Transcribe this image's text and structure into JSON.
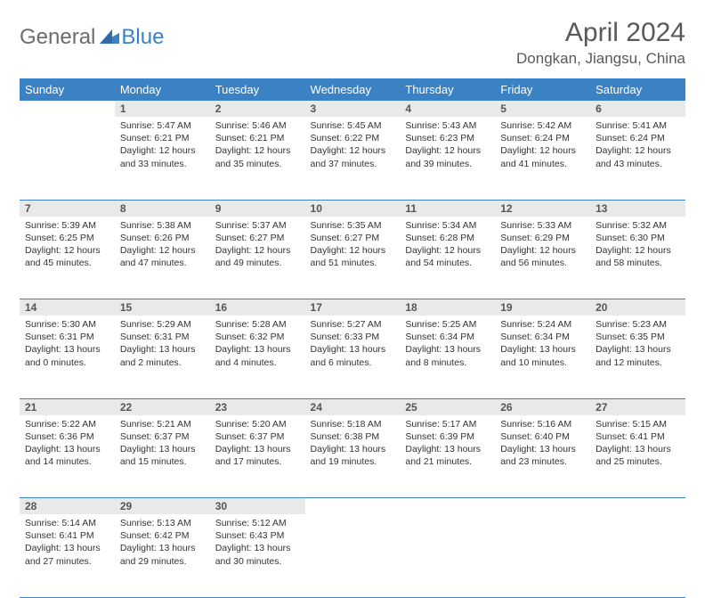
{
  "brand": {
    "part1": "General",
    "part2": "Blue"
  },
  "title": "April 2024",
  "location": "Dongkan, Jiangsu, China",
  "colors": {
    "header_bg": "#3b82c4",
    "header_fg": "#ffffff",
    "daynum_bg": "#e9e9e9",
    "rule": "#3b82c4",
    "page_bg": "#ffffff",
    "text": "#333333",
    "title_color": "#595959"
  },
  "typography": {
    "month_title_size": 30,
    "location_size": 17,
    "header_cell_size": 13,
    "daynum_size": 12,
    "body_size": 10.5
  },
  "weekday_headers": [
    "Sunday",
    "Monday",
    "Tuesday",
    "Wednesday",
    "Thursday",
    "Friday",
    "Saturday"
  ],
  "start_offset": 1,
  "days": [
    {
      "n": 1,
      "sunrise": "5:47 AM",
      "sunset": "6:21 PM",
      "dl_h": 12,
      "dl_m": 33
    },
    {
      "n": 2,
      "sunrise": "5:46 AM",
      "sunset": "6:21 PM",
      "dl_h": 12,
      "dl_m": 35
    },
    {
      "n": 3,
      "sunrise": "5:45 AM",
      "sunset": "6:22 PM",
      "dl_h": 12,
      "dl_m": 37
    },
    {
      "n": 4,
      "sunrise": "5:43 AM",
      "sunset": "6:23 PM",
      "dl_h": 12,
      "dl_m": 39
    },
    {
      "n": 5,
      "sunrise": "5:42 AM",
      "sunset": "6:24 PM",
      "dl_h": 12,
      "dl_m": 41
    },
    {
      "n": 6,
      "sunrise": "5:41 AM",
      "sunset": "6:24 PM",
      "dl_h": 12,
      "dl_m": 43
    },
    {
      "n": 7,
      "sunrise": "5:39 AM",
      "sunset": "6:25 PM",
      "dl_h": 12,
      "dl_m": 45
    },
    {
      "n": 8,
      "sunrise": "5:38 AM",
      "sunset": "6:26 PM",
      "dl_h": 12,
      "dl_m": 47
    },
    {
      "n": 9,
      "sunrise": "5:37 AM",
      "sunset": "6:27 PM",
      "dl_h": 12,
      "dl_m": 49
    },
    {
      "n": 10,
      "sunrise": "5:35 AM",
      "sunset": "6:27 PM",
      "dl_h": 12,
      "dl_m": 51
    },
    {
      "n": 11,
      "sunrise": "5:34 AM",
      "sunset": "6:28 PM",
      "dl_h": 12,
      "dl_m": 54
    },
    {
      "n": 12,
      "sunrise": "5:33 AM",
      "sunset": "6:29 PM",
      "dl_h": 12,
      "dl_m": 56
    },
    {
      "n": 13,
      "sunrise": "5:32 AM",
      "sunset": "6:30 PM",
      "dl_h": 12,
      "dl_m": 58
    },
    {
      "n": 14,
      "sunrise": "5:30 AM",
      "sunset": "6:31 PM",
      "dl_h": 13,
      "dl_m": 0
    },
    {
      "n": 15,
      "sunrise": "5:29 AM",
      "sunset": "6:31 PM",
      "dl_h": 13,
      "dl_m": 2
    },
    {
      "n": 16,
      "sunrise": "5:28 AM",
      "sunset": "6:32 PM",
      "dl_h": 13,
      "dl_m": 4
    },
    {
      "n": 17,
      "sunrise": "5:27 AM",
      "sunset": "6:33 PM",
      "dl_h": 13,
      "dl_m": 6
    },
    {
      "n": 18,
      "sunrise": "5:25 AM",
      "sunset": "6:34 PM",
      "dl_h": 13,
      "dl_m": 8
    },
    {
      "n": 19,
      "sunrise": "5:24 AM",
      "sunset": "6:34 PM",
      "dl_h": 13,
      "dl_m": 10
    },
    {
      "n": 20,
      "sunrise": "5:23 AM",
      "sunset": "6:35 PM",
      "dl_h": 13,
      "dl_m": 12
    },
    {
      "n": 21,
      "sunrise": "5:22 AM",
      "sunset": "6:36 PM",
      "dl_h": 13,
      "dl_m": 14
    },
    {
      "n": 22,
      "sunrise": "5:21 AM",
      "sunset": "6:37 PM",
      "dl_h": 13,
      "dl_m": 15
    },
    {
      "n": 23,
      "sunrise": "5:20 AM",
      "sunset": "6:37 PM",
      "dl_h": 13,
      "dl_m": 17
    },
    {
      "n": 24,
      "sunrise": "5:18 AM",
      "sunset": "6:38 PM",
      "dl_h": 13,
      "dl_m": 19
    },
    {
      "n": 25,
      "sunrise": "5:17 AM",
      "sunset": "6:39 PM",
      "dl_h": 13,
      "dl_m": 21
    },
    {
      "n": 26,
      "sunrise": "5:16 AM",
      "sunset": "6:40 PM",
      "dl_h": 13,
      "dl_m": 23
    },
    {
      "n": 27,
      "sunrise": "5:15 AM",
      "sunset": "6:41 PM",
      "dl_h": 13,
      "dl_m": 25
    },
    {
      "n": 28,
      "sunrise": "5:14 AM",
      "sunset": "6:41 PM",
      "dl_h": 13,
      "dl_m": 27
    },
    {
      "n": 29,
      "sunrise": "5:13 AM",
      "sunset": "6:42 PM",
      "dl_h": 13,
      "dl_m": 29
    },
    {
      "n": 30,
      "sunrise": "5:12 AM",
      "sunset": "6:43 PM",
      "dl_h": 13,
      "dl_m": 30
    }
  ]
}
